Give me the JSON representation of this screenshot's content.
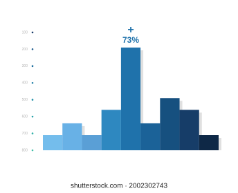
{
  "chart_data": {
    "type": "bar",
    "categories": [
      null,
      null,
      null,
      null,
      null,
      null,
      null,
      null,
      null
    ],
    "values": [
      710,
      640,
      710,
      560,
      190,
      640,
      490,
      560,
      710
    ],
    "colors": [
      "#74bdec",
      "#68b1e6",
      "#5a9fd6",
      "#2e88c0",
      "#1f72ab",
      "#1b6298",
      "#16507f",
      "#163d68",
      "#0e2846"
    ],
    "ylim": [
      800,
      100
    ],
    "yticks": [
      100,
      200,
      300,
      400,
      500,
      600,
      700,
      800
    ],
    "annotation_symbol": "+",
    "annotation": "73%",
    "annotation_bar": 4,
    "watermark": "shutterstock.com · 2002302743"
  }
}
